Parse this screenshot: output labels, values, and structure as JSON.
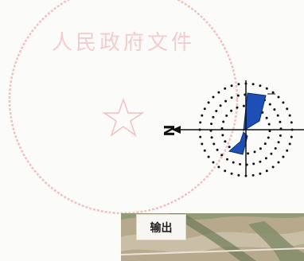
{
  "seal": {
    "text": "人民政府文件",
    "color": "#e0545c"
  },
  "wind_rose": {
    "north_label": "N",
    "fill_color": "#1f4fb4",
    "axis_color": "#111111",
    "dot_color": "#111111"
  },
  "aerial_map": {
    "label": "输出",
    "colors": [
      "#b7a98c",
      "#8f9a74",
      "#c9bfa6",
      "#6d7a58"
    ]
  }
}
